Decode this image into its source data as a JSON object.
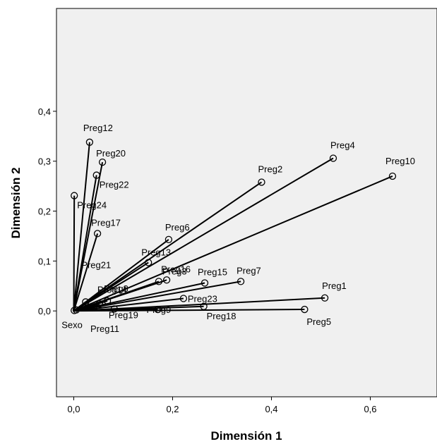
{
  "chart_data": {
    "type": "scatter",
    "style": "biplot-vectors-from-origin",
    "xlabel": "Dimensión 1",
    "ylabel": "Dimensión 2",
    "xlim": [
      -0.035,
      0.735
    ],
    "ylim": [
      -0.172,
      0.606
    ],
    "xticks": [
      "0,0",
      "0,2",
      "0,4",
      "0,6"
    ],
    "yticks": [
      "0,0",
      "0,1",
      "0,2",
      "0,3",
      "0,4"
    ],
    "colors": {
      "plot_background": "#f0f0f0",
      "line": "#000000",
      "marker_fill": "none"
    },
    "points": [
      {
        "label": "Preg12",
        "x": 0.032,
        "y": 0.338
      },
      {
        "label": "Preg20",
        "x": 0.058,
        "y": 0.298
      },
      {
        "label": "Preg22",
        "x": 0.046,
        "y": 0.272
      },
      {
        "label": "Preg24",
        "x": 0.001,
        "y": 0.231
      },
      {
        "label": "Preg17",
        "x": 0.048,
        "y": 0.155
      },
      {
        "label": "Preg4",
        "x": 0.525,
        "y": 0.306
      },
      {
        "label": "Preg10",
        "x": 0.645,
        "y": 0.27
      },
      {
        "label": "Preg2",
        "x": 0.38,
        "y": 0.258
      },
      {
        "label": "Preg6",
        "x": 0.192,
        "y": 0.143
      },
      {
        "label": "Preg13",
        "x": 0.151,
        "y": 0.097
      },
      {
        "label": "Preg16",
        "x": 0.188,
        "y": 0.062
      },
      {
        "label": "Preg15",
        "x": 0.265,
        "y": 0.056
      },
      {
        "label": "Preg7",
        "x": 0.338,
        "y": 0.059
      },
      {
        "label": "Preg21",
        "x": 0.024,
        "y": 0.018
      },
      {
        "label": "Preg8",
        "x": 0.068,
        "y": 0.02
      },
      {
        "label": "Preg14",
        "x": 0.052,
        "y": 0.014
      },
      {
        "label": "Preg3",
        "x": 0.172,
        "y": 0.059
      },
      {
        "label": "Preg23",
        "x": 0.222,
        "y": 0.025
      },
      {
        "label": "Preg1",
        "x": 0.508,
        "y": 0.026
      },
      {
        "label": "Preg19",
        "x": 0.082,
        "y": 0.004
      },
      {
        "label": "Preg9",
        "x": 0.17,
        "y": 0.003
      },
      {
        "label": "Preg18",
        "x": 0.263,
        "y": 0.009
      },
      {
        "label": "Preg5",
        "x": 0.467,
        "y": 0.003
      },
      {
        "label": "Sexo",
        "x": 0.001,
        "y": 0.001
      },
      {
        "label": "Preg11",
        "x": 0.005,
        "y": 0.002
      }
    ]
  }
}
